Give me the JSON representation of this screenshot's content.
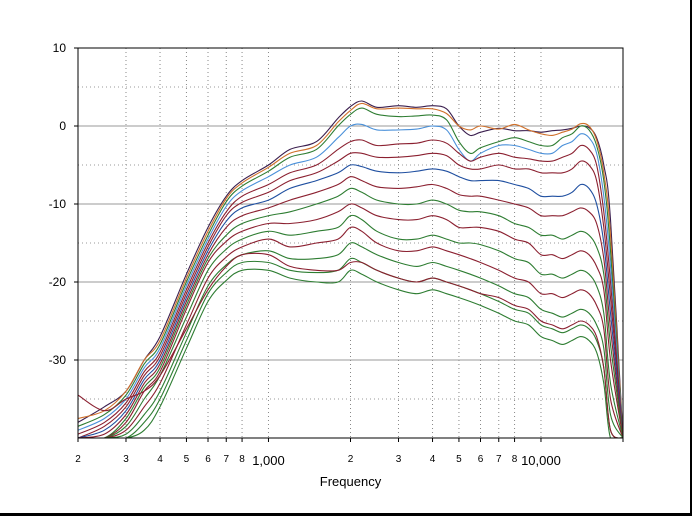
{
  "chart_data": {
    "type": "line",
    "title": "",
    "xlabel": "Frequency",
    "ylabel": "",
    "x_scale": "log",
    "xlim": [
      200,
      20000
    ],
    "ylim": [
      -40,
      10
    ],
    "grid": true,
    "y_ticks": [
      {
        "v": 10,
        "label": "10"
      },
      {
        "v": 0,
        "label": "0"
      },
      {
        "v": -10,
        "label": "-10"
      },
      {
        "v": -20,
        "label": "-20"
      },
      {
        "v": -30,
        "label": "-30"
      }
    ],
    "x_ticks": [
      {
        "v": 200,
        "label": "2"
      },
      {
        "v": 300,
        "label": "3"
      },
      {
        "v": 400,
        "label": "4"
      },
      {
        "v": 500,
        "label": "5"
      },
      {
        "v": 600,
        "label": "6"
      },
      {
        "v": 700,
        "label": "7"
      },
      {
        "v": 800,
        "label": "8"
      },
      {
        "v": 1000,
        "label": "1,000"
      },
      {
        "v": 2000,
        "label": "2"
      },
      {
        "v": 3000,
        "label": "3"
      },
      {
        "v": 4000,
        "label": "4"
      },
      {
        "v": 5000,
        "label": "5"
      },
      {
        "v": 6000,
        "label": "6"
      },
      {
        "v": 7000,
        "label": "7"
      },
      {
        "v": 8000,
        "label": "8"
      },
      {
        "v": 10000,
        "label": "10,000"
      },
      {
        "v": 20000,
        "label": ""
      }
    ],
    "x": [
      200,
      250,
      300,
      350,
      400,
      500,
      600,
      700,
      800,
      1000,
      1200,
      1500,
      1800,
      2000,
      2200,
      2500,
      3000,
      3500,
      4000,
      4500,
      5000,
      5500,
      6000,
      7000,
      8000,
      9000,
      10000,
      11000,
      12000,
      13000,
      14000,
      15000,
      16000,
      17000,
      18000,
      20000
    ],
    "series": [
      {
        "color": "#3b1f4f",
        "values": [
          -38,
          -36,
          -34,
          -30,
          -27,
          -19,
          -13,
          -9,
          -7,
          -5,
          -3,
          -2,
          1,
          2.5,
          3.2,
          2.4,
          2.6,
          2.4,
          2.6,
          2.2,
          0,
          -1.2,
          -0.8,
          -0.3,
          -0.6,
          -0.6,
          -0.8,
          -0.6,
          -0.5,
          -0.3,
          0,
          -0.2,
          -1.5,
          -5,
          -12,
          -40
        ]
      },
      {
        "color": "#d0702a",
        "values": [
          -37.5,
          -36.5,
          -34,
          -30,
          -27.5,
          -19.5,
          -13.5,
          -9.3,
          -7.3,
          -5.3,
          -3.5,
          -2.5,
          0.5,
          2,
          2.9,
          2.2,
          2.3,
          2.2,
          2.2,
          1.6,
          0,
          -0.5,
          0,
          -0.4,
          0.2,
          -0.5,
          -1,
          -1.2,
          -0.8,
          -0.4,
          0.3,
          0,
          -1.8,
          -6,
          -14,
          -40
        ]
      },
      {
        "color": "#2e7d32",
        "values": [
          -38.5,
          -37,
          -34.5,
          -30.5,
          -28,
          -20,
          -14,
          -9.7,
          -7.7,
          -5.8,
          -4,
          -3,
          0,
          1.5,
          2.3,
          1.5,
          1.2,
          1.3,
          1.4,
          0.8,
          -2,
          -3.5,
          -2.8,
          -2,
          -1.5,
          -2,
          -2.5,
          -2.5,
          -1.5,
          -1,
          0,
          -0.5,
          -2.5,
          -7,
          -16,
          -40
        ]
      },
      {
        "color": "#4a90d9",
        "values": [
          -39,
          -37.5,
          -35,
          -31,
          -28.5,
          -20.5,
          -14.5,
          -10.3,
          -8.3,
          -6.5,
          -5,
          -4,
          -1.5,
          0,
          0.2,
          -0.5,
          -0.5,
          -0.4,
          0,
          -0.5,
          -3,
          -4.5,
          -3.5,
          -2.5,
          -2.5,
          -3,
          -3.5,
          -3.5,
          -2.5,
          -2,
          -1,
          -1.5,
          -3.5,
          -9,
          -18,
          -40
        ]
      },
      {
        "color": "#8b2030",
        "values": [
          -39.5,
          -38,
          -35.5,
          -31.5,
          -29,
          -21,
          -15,
          -11,
          -9,
          -7.5,
          -6,
          -5,
          -3,
          -2,
          -1.8,
          -2.5,
          -2.3,
          -2.2,
          -1.8,
          -2.2,
          -3.5,
          -4.5,
          -4,
          -3.5,
          -4,
          -4.2,
          -4.5,
          -4.5,
          -4,
          -3.5,
          -2.5,
          -3,
          -5,
          -11,
          -20,
          -40
        ]
      },
      {
        "color": "#8b2030",
        "values": [
          -40,
          -38.5,
          -36,
          -32,
          -29.5,
          -21.5,
          -15.5,
          -11.5,
          -9.8,
          -8.5,
          -7,
          -6,
          -4.5,
          -3.5,
          -3.5,
          -4,
          -4,
          -3.8,
          -3.5,
          -3.8,
          -5,
          -5.5,
          -5.5,
          -5,
          -5.5,
          -5.5,
          -6,
          -6,
          -6,
          -5.5,
          -4.5,
          -5,
          -7,
          -13,
          -22,
          -40
        ]
      },
      {
        "color": "#1f4fa0",
        "values": [
          -40,
          -39,
          -36.5,
          -32.5,
          -30,
          -22,
          -16,
          -12.2,
          -10.5,
          -9.5,
          -8,
          -7,
          -6,
          -5,
          -5.2,
          -5.8,
          -6,
          -5.8,
          -5.5,
          -5.8,
          -6.5,
          -7,
          -7,
          -7,
          -7.5,
          -8,
          -9,
          -9,
          -9,
          -8.5,
          -7.5,
          -8,
          -10,
          -15,
          -24,
          -40
        ]
      },
      {
        "color": "#8b2030",
        "values": [
          -40,
          -39.5,
          -37,
          -33,
          -30.5,
          -22.5,
          -16.5,
          -13,
          -11.5,
          -10.5,
          -9.5,
          -8.5,
          -7.5,
          -6.5,
          -7,
          -7.8,
          -8,
          -7.8,
          -7.5,
          -8,
          -8.8,
          -9,
          -9,
          -9.5,
          -10,
          -10.5,
          -11.5,
          -11.5,
          -11.5,
          -11,
          -10.5,
          -11,
          -12.5,
          -17,
          -26,
          -40
        ]
      },
      {
        "color": "#2e7d32",
        "values": [
          -40,
          -40,
          -37.5,
          -33.5,
          -31,
          -23,
          -17,
          -14,
          -12.5,
          -11.5,
          -11,
          -10,
          -9,
          -8,
          -8.5,
          -9.5,
          -10,
          -10,
          -9.5,
          -10,
          -10.8,
          -11,
          -11,
          -11.5,
          -12.5,
          -13,
          -14,
          -14,
          -14.5,
          -14,
          -13.5,
          -14,
          -15.5,
          -19,
          -28,
          -40
        ]
      },
      {
        "color": "#8b2030",
        "values": [
          -40,
          -40,
          -38,
          -34,
          -31.5,
          -23.5,
          -17.5,
          -14.8,
          -13.5,
          -12.5,
          -12.5,
          -12,
          -11,
          -10,
          -10.5,
          -11.5,
          -12,
          -12,
          -11.5,
          -12,
          -13,
          -13,
          -13,
          -13.5,
          -14.5,
          -15,
          -16.5,
          -16.5,
          -17,
          -16.5,
          -16,
          -16.5,
          -18,
          -21,
          -30,
          -40
        ]
      },
      {
        "color": "#2e7d32",
        "values": [
          -40,
          -40,
          -38.5,
          -35,
          -32,
          -24.5,
          -18.5,
          -15.8,
          -14.5,
          -13.5,
          -14,
          -13.5,
          -13,
          -11.5,
          -12,
          -13.5,
          -14.5,
          -14.5,
          -14,
          -14.5,
          -15,
          -15,
          -15.2,
          -16,
          -17,
          -17.5,
          -19,
          -19,
          -19.5,
          -19,
          -18.5,
          -19,
          -20.5,
          -24,
          -33,
          -40
        ]
      },
      {
        "color": "#8b2030",
        "values": [
          -40,
          -40,
          -39,
          -36,
          -33,
          -25.5,
          -19.5,
          -16.8,
          -15.5,
          -14.5,
          -15.5,
          -15,
          -14.5,
          -13,
          -13.5,
          -15,
          -16,
          -16,
          -15.5,
          -16,
          -16.5,
          -17,
          -17.5,
          -18.5,
          -19.5,
          -20,
          -21.5,
          -21.5,
          -22,
          -21.5,
          -21,
          -21.5,
          -23,
          -26,
          -35,
          -40
        ]
      },
      {
        "color": "#2e7d32",
        "values": [
          -40,
          -40,
          -39.5,
          -37,
          -34,
          -26.5,
          -20.5,
          -17.8,
          -16.5,
          -16,
          -17,
          -17,
          -16.5,
          -15,
          -15.5,
          -16.5,
          -17.5,
          -18,
          -17.5,
          -18,
          -18.5,
          -19,
          -19.5,
          -20.5,
          -21.5,
          -22,
          -23.5,
          -24,
          -24.5,
          -24,
          -23.5,
          -24,
          -25.5,
          -28.5,
          -37,
          -40
        ]
      },
      {
        "color": "#2e7d32",
        "values": [
          -40,
          -40,
          -40,
          -38,
          -35,
          -27.5,
          -21.5,
          -18.8,
          -17.5,
          -17.5,
          -18.5,
          -18.8,
          -18.5,
          -17,
          -17.5,
          -18.5,
          -19.5,
          -20,
          -19.5,
          -20,
          -20.5,
          -21,
          -21.5,
          -22.5,
          -23.5,
          -24,
          -25.5,
          -26,
          -26.5,
          -26,
          -25.5,
          -26,
          -27.5,
          -31,
          -39,
          -40
        ]
      },
      {
        "color": "#2e7d32",
        "values": [
          -40,
          -40,
          -40,
          -39,
          -36,
          -28.5,
          -22.5,
          -19.8,
          -18.5,
          -18.5,
          -19.5,
          -20,
          -20,
          -18.5,
          -19,
          -20,
          -21,
          -21.5,
          -21,
          -21.5,
          -22,
          -22.5,
          -23,
          -24,
          -25,
          -25.5,
          -27,
          -27.5,
          -28,
          -27.5,
          -27,
          -27.5,
          -29,
          -33,
          -40,
          -40
        ]
      },
      {
        "color": "#8b2030",
        "values": [
          -34.5,
          -36.5,
          -35,
          -34,
          -32,
          -26,
          -21,
          -18,
          -16.5,
          -16.5,
          -18,
          -18.5,
          -18.5,
          -17.5,
          -17.5,
          -18.5,
          -19.5,
          -20,
          -19.5,
          -20,
          -20.5,
          -21,
          -21.5,
          -22,
          -23,
          -23.5,
          -25,
          -25.5,
          -26,
          -25.5,
          -25,
          -25.5,
          -27,
          -31,
          -39,
          -40
        ]
      }
    ]
  }
}
